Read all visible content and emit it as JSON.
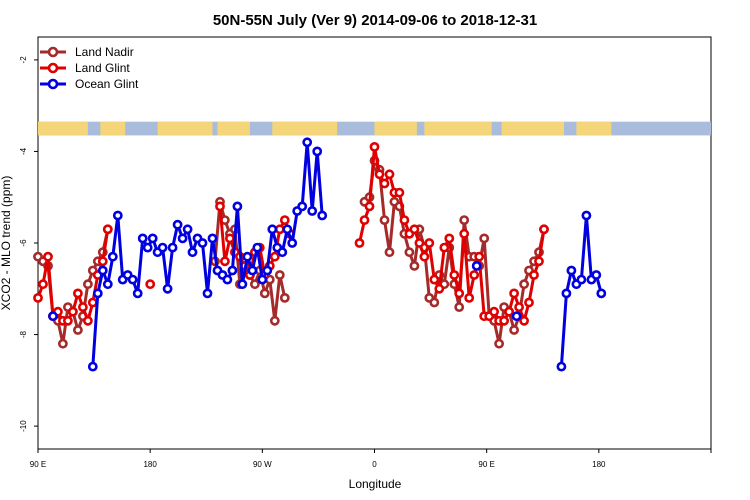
{
  "chart_data": {
    "type": "line",
    "title": "50N-55N July (Ver 9)   2014-09-06 to 2018-12-31",
    "xlabel": "Longitude",
    "ylabel": "XCO2 - MLO trend (ppm)",
    "xlim": [
      -90,
      180
    ],
    "ylim": [
      -10.5,
      -1.5
    ],
    "x_ticks": [
      {
        "value": -90,
        "label": "90 E"
      },
      {
        "value": -45,
        "label": "180"
      },
      {
        "value": 0,
        "label": "90 W"
      },
      {
        "value": 45,
        "label": "0"
      },
      {
        "value": 90,
        "label": "90 E"
      },
      {
        "value": 135,
        "label": "180"
      }
    ],
    "y_ticks": [
      {
        "value": -2,
        "label": "-2"
      },
      {
        "value": -4,
        "label": "-4"
      },
      {
        "value": -6,
        "label": "-6"
      },
      {
        "value": -8,
        "label": "-8"
      },
      {
        "value": -10,
        "label": "-10"
      }
    ],
    "legend_position": "top-left",
    "land_sea_band": {
      "y_range": [
        -3.65,
        -3.35
      ],
      "ocean_color": "#a9bcdc",
      "land_color": "#f4d57a"
    },
    "series": [
      {
        "name": "Land Nadir",
        "color": "#a52a2a",
        "segments": [
          [
            [
              -90,
              -6.3
            ],
            [
              -88,
              -6.4
            ],
            [
              -86,
              -6.5
            ],
            [
              -84,
              -7.6
            ],
            [
              -82,
              -7.7
            ],
            [
              -80,
              -8.2
            ],
            [
              -78,
              -7.4
            ],
            [
              -76,
              -7.5
            ],
            [
              -74,
              -7.9
            ],
            [
              -72,
              -7.6
            ],
            [
              -70,
              -6.9
            ],
            [
              -68,
              -6.6
            ],
            [
              -66,
              -6.4
            ],
            [
              -64,
              -6.2
            ],
            [
              -62,
              -5.7
            ]
          ],
          [
            [
              -19,
              -6.4
            ],
            [
              -17,
              -5.1
            ],
            [
              -15,
              -5.5
            ],
            [
              -13,
              -5.8
            ],
            [
              -11,
              -5.7
            ],
            [
              -9,
              -6.9
            ],
            [
              -7,
              -6.6
            ],
            [
              -5,
              -6.7
            ],
            [
              -3,
              -6.9
            ],
            [
              -1,
              -6.6
            ],
            [
              1,
              -7.1
            ],
            [
              3,
              -6.8
            ],
            [
              5,
              -7.7
            ],
            [
              7,
              -6.7
            ],
            [
              9,
              -7.2
            ]
          ],
          [
            [
              41,
              -5.1
            ],
            [
              43,
              -5.0
            ],
            [
              45,
              -4.2
            ],
            [
              47,
              -4.4
            ],
            [
              49,
              -5.5
            ],
            [
              51,
              -6.2
            ],
            [
              53,
              -5.1
            ],
            [
              55,
              -5.2
            ],
            [
              57,
              -5.8
            ],
            [
              59,
              -6.2
            ],
            [
              61,
              -6.5
            ],
            [
              63,
              -5.7
            ],
            [
              65,
              -6.1
            ],
            [
              67,
              -7.2
            ],
            [
              69,
              -7.3
            ],
            [
              71,
              -6.7
            ],
            [
              73,
              -6.9
            ],
            [
              75,
              -6.1
            ],
            [
              77,
              -6.9
            ],
            [
              79,
              -7.4
            ],
            [
              81,
              -5.5
            ],
            [
              83,
              -6.3
            ],
            [
              85,
              -6.3
            ],
            [
              87,
              -6.5
            ],
            [
              89,
              -5.9
            ],
            [
              91,
              -7.6
            ],
            [
              93,
              -7.7
            ],
            [
              95,
              -8.2
            ],
            [
              97,
              -7.4
            ],
            [
              99,
              -7.5
            ],
            [
              101,
              -7.9
            ],
            [
              103,
              -7.6
            ],
            [
              105,
              -6.9
            ],
            [
              107,
              -6.6
            ],
            [
              109,
              -6.4
            ],
            [
              111,
              -6.2
            ],
            [
              113,
              -5.7
            ]
          ]
        ]
      },
      {
        "name": "Land Glint",
        "color": "#e00000",
        "segments": [
          [
            [
              -90,
              -7.2
            ],
            [
              -88,
              -6.9
            ],
            [
              -86,
              -6.3
            ],
            [
              -84,
              -7.6
            ],
            [
              -82,
              -7.5
            ],
            [
              -80,
              -7.7
            ],
            [
              -78,
              -7.7
            ],
            [
              -76,
              -7.5
            ],
            [
              -74,
              -7.1
            ],
            [
              -72,
              -7.4
            ],
            [
              -70,
              -7.7
            ],
            [
              -68,
              -7.3
            ],
            [
              -66,
              -6.7
            ],
            [
              -64,
              -6.4
            ],
            [
              -62,
              -5.7
            ]
          ],
          [
            [
              -45,
              -6.9
            ]
          ],
          [
            [
              -17,
              -5.2
            ],
            [
              -15,
              -6.4
            ],
            [
              -13,
              -5.9
            ],
            [
              -11,
              -6.2
            ],
            [
              -9,
              -6.3
            ],
            [
              -7,
              -6.5
            ],
            [
              -5,
              -6.7
            ],
            [
              -3,
              -6.2
            ],
            [
              -1,
              -6.1
            ],
            [
              1,
              -6.7
            ],
            [
              3,
              -6.5
            ],
            [
              5,
              -6.3
            ],
            [
              7,
              -5.7
            ],
            [
              9,
              -5.5
            ],
            [
              11,
              -5.8
            ]
          ],
          [
            [
              39,
              -6.0
            ],
            [
              41,
              -5.5
            ],
            [
              43,
              -5.2
            ],
            [
              45,
              -3.9
            ],
            [
              47,
              -4.5
            ],
            [
              49,
              -4.7
            ],
            [
              51,
              -4.5
            ],
            [
              53,
              -4.9
            ],
            [
              55,
              -4.9
            ],
            [
              57,
              -5.5
            ],
            [
              59,
              -5.8
            ],
            [
              61,
              -5.7
            ],
            [
              63,
              -6.0
            ],
            [
              65,
              -6.3
            ],
            [
              67,
              -6.0
            ],
            [
              69,
              -6.8
            ],
            [
              71,
              -7.0
            ],
            [
              73,
              -6.1
            ],
            [
              75,
              -5.9
            ],
            [
              77,
              -6.7
            ],
            [
              79,
              -7.1
            ],
            [
              81,
              -5.8
            ],
            [
              83,
              -7.2
            ],
            [
              85,
              -6.7
            ],
            [
              87,
              -6.3
            ],
            [
              89,
              -7.6
            ],
            [
              91,
              -7.6
            ],
            [
              93,
              -7.5
            ],
            [
              95,
              -7.7
            ],
            [
              97,
              -7.7
            ],
            [
              99,
              -7.5
            ],
            [
              101,
              -7.1
            ],
            [
              103,
              -7.4
            ],
            [
              105,
              -7.7
            ],
            [
              107,
              -7.3
            ],
            [
              109,
              -6.7
            ],
            [
              111,
              -6.4
            ],
            [
              113,
              -5.7
            ]
          ]
        ]
      },
      {
        "name": "Ocean Glint",
        "color": "#0000e0",
        "segments": [
          [
            [
              -84,
              -7.6
            ]
          ],
          [
            [
              -68,
              -8.7
            ],
            [
              -66,
              -7.1
            ],
            [
              -64,
              -6.6
            ],
            [
              -62,
              -6.9
            ],
            [
              -60,
              -6.3
            ],
            [
              -58,
              -5.4
            ],
            [
              -56,
              -6.8
            ],
            [
              -54,
              -6.7
            ],
            [
              -52,
              -6.8
            ],
            [
              -50,
              -7.1
            ],
            [
              -48,
              -5.9
            ],
            [
              -46,
              -6.1
            ],
            [
              -44,
              -5.9
            ],
            [
              -42,
              -6.2
            ],
            [
              -40,
              -6.1
            ],
            [
              -38,
              -7.0
            ],
            [
              -36,
              -6.1
            ],
            [
              -34,
              -5.6
            ],
            [
              -32,
              -5.9
            ],
            [
              -30,
              -5.7
            ],
            [
              -28,
              -6.2
            ],
            [
              -26,
              -5.9
            ],
            [
              -24,
              -6.0
            ],
            [
              -22,
              -7.1
            ],
            [
              -20,
              -5.9
            ],
            [
              -18,
              -6.6
            ],
            [
              -16,
              -6.7
            ],
            [
              -14,
              -6.8
            ],
            [
              -12,
              -6.6
            ],
            [
              -10,
              -5.2
            ],
            [
              -8,
              -6.9
            ],
            [
              -6,
              -6.3
            ],
            [
              -4,
              -6.6
            ],
            [
              -2,
              -6.1
            ],
            [
              0,
              -6.8
            ],
            [
              2,
              -6.6
            ],
            [
              4,
              -5.7
            ],
            [
              6,
              -6.1
            ],
            [
              8,
              -6.2
            ],
            [
              10,
              -5.7
            ],
            [
              12,
              -6.0
            ],
            [
              14,
              -5.3
            ],
            [
              16,
              -5.2
            ],
            [
              18,
              -3.8
            ],
            [
              20,
              -5.3
            ],
            [
              22,
              -4.0
            ],
            [
              24,
              -5.4
            ]
          ],
          [
            [
              86,
              -6.5
            ]
          ],
          [
            [
              102,
              -7.6
            ]
          ],
          [
            [
              120,
              -8.7
            ],
            [
              122,
              -7.1
            ],
            [
              124,
              -6.6
            ],
            [
              126,
              -6.9
            ],
            [
              128,
              -6.8
            ],
            [
              130,
              -5.4
            ],
            [
              132,
              -6.8
            ],
            [
              134,
              -6.7
            ],
            [
              136,
              -7.1
            ]
          ]
        ]
      }
    ],
    "land_spans": [
      [
        -90,
        -70
      ],
      [
        -65,
        -55
      ],
      [
        -42,
        -20
      ],
      [
        -18,
        -5
      ],
      [
        4,
        30
      ],
      [
        45,
        62
      ],
      [
        65,
        92
      ],
      [
        96,
        121
      ],
      [
        126,
        140
      ]
    ]
  }
}
